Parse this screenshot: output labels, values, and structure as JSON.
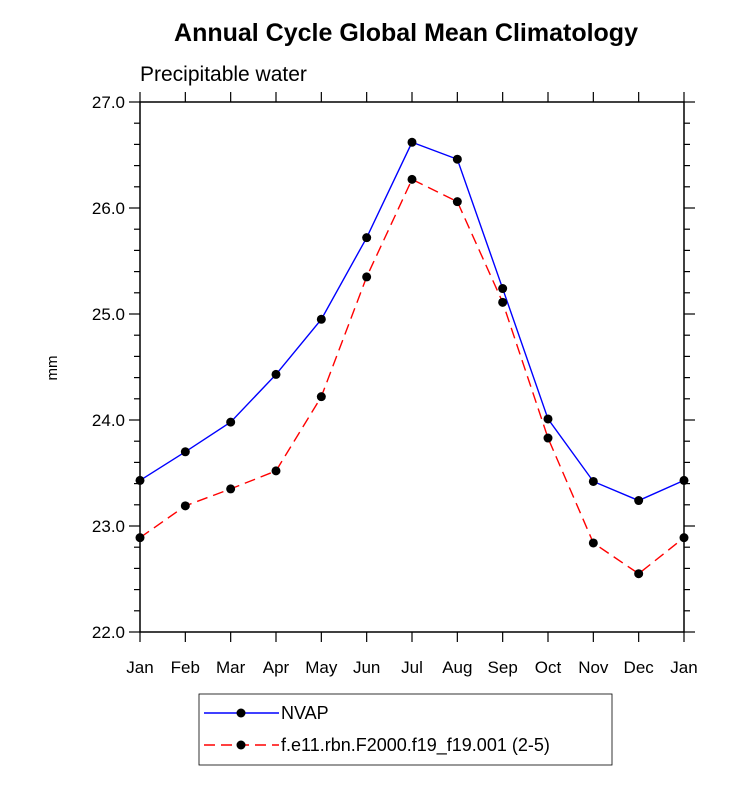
{
  "chart_data": {
    "type": "line",
    "title": "Annual Cycle Global Mean Climatology",
    "subtitle": "Precipitable water",
    "xlabel": "",
    "ylabel": "mm",
    "categories": [
      "Jan",
      "Feb",
      "Mar",
      "Apr",
      "May",
      "Jun",
      "Jul",
      "Aug",
      "Sep",
      "Oct",
      "Nov",
      "Dec",
      "Jan"
    ],
    "ylim": [
      22.0,
      27.0
    ],
    "yticks": [
      "22.0",
      "23.0",
      "24.0",
      "25.0",
      "26.0",
      "27.0"
    ],
    "grid": false,
    "legend_position": "bottom",
    "series": [
      {
        "name": "NVAP",
        "color": "#0000ff",
        "dash": "solid",
        "values": [
          23.43,
          23.7,
          23.98,
          24.43,
          24.95,
          25.72,
          26.62,
          26.46,
          25.24,
          24.01,
          23.42,
          23.24,
          23.43
        ]
      },
      {
        "name": "f.e11.rbn.F2000.f19_f19.001 (2-5)",
        "color": "#ff0000",
        "dash": "dashed",
        "values": [
          22.89,
          23.19,
          23.35,
          23.52,
          24.22,
          25.35,
          26.27,
          26.06,
          25.11,
          23.83,
          22.84,
          22.55,
          22.89
        ]
      }
    ]
  }
}
